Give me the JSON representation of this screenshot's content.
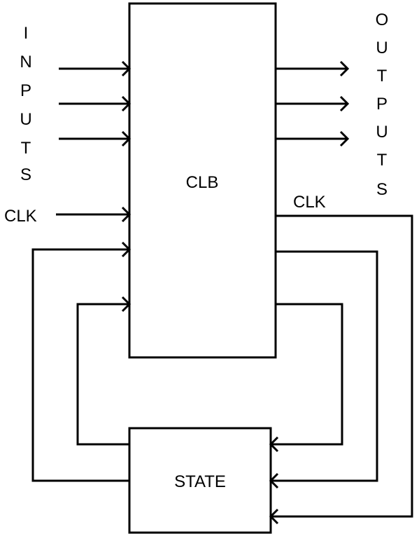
{
  "labels": {
    "clb": "CLB",
    "state": "STATE",
    "clk_in": "CLK",
    "clk_out": "CLK"
  },
  "inputs_letters": [
    "I",
    "N",
    "P",
    "U",
    "T",
    "S"
  ],
  "outputs_letters": [
    "O",
    "U",
    "T",
    "P",
    "U",
    "T",
    "S"
  ]
}
